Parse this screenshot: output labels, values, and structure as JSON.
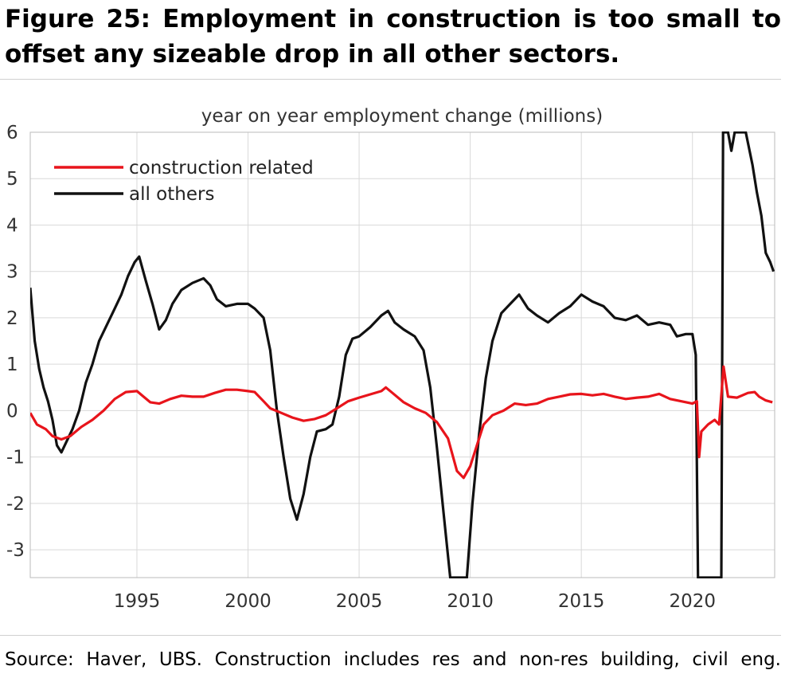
{
  "figure": {
    "title": "Figure 25: Employment in construction is too small to offset any sizeable drop in all other sectors.",
    "source": "Source: Haver, UBS. Construction includes res and non-res building, civil eng."
  },
  "chart_data": {
    "type": "line",
    "title": "year on year employment change (millions)",
    "xlabel": "",
    "ylabel": "",
    "xlim": [
      1990.2,
      2023.7
    ],
    "ylim": [
      -3.6,
      6
    ],
    "x_ticks": [
      1995,
      2000,
      2005,
      2010,
      2015,
      2020
    ],
    "y_ticks": [
      -3,
      -2,
      -1,
      0,
      1,
      2,
      3,
      4,
      5,
      6
    ],
    "y_tick_labels": [
      "-3",
      "-2",
      "-1",
      "0",
      "1",
      "2",
      "3",
      "4",
      "5",
      "6"
    ],
    "grid": true,
    "legend": "top-left",
    "series": [
      {
        "name": "construction related",
        "color": "#e8141b",
        "points": [
          [
            1990.2,
            -0.05
          ],
          [
            1990.5,
            -0.3
          ],
          [
            1990.9,
            -0.4
          ],
          [
            1991.2,
            -0.55
          ],
          [
            1991.6,
            -0.62
          ],
          [
            1992.0,
            -0.55
          ],
          [
            1992.5,
            -0.35
          ],
          [
            1993.0,
            -0.2
          ],
          [
            1993.5,
            0.0
          ],
          [
            1994.0,
            0.25
          ],
          [
            1994.5,
            0.4
          ],
          [
            1995.0,
            0.42
          ],
          [
            1995.3,
            0.3
          ],
          [
            1995.6,
            0.18
          ],
          [
            1996.0,
            0.15
          ],
          [
            1996.5,
            0.25
          ],
          [
            1997.0,
            0.32
          ],
          [
            1997.5,
            0.3
          ],
          [
            1998.0,
            0.3
          ],
          [
            1998.5,
            0.38
          ],
          [
            1999.0,
            0.45
          ],
          [
            1999.5,
            0.45
          ],
          [
            2000.0,
            0.42
          ],
          [
            2000.3,
            0.4
          ],
          [
            2000.7,
            0.2
          ],
          [
            2001.0,
            0.05
          ],
          [
            2001.5,
            -0.05
          ],
          [
            2002.0,
            -0.15
          ],
          [
            2002.5,
            -0.22
          ],
          [
            2003.0,
            -0.18
          ],
          [
            2003.5,
            -0.1
          ],
          [
            2004.0,
            0.05
          ],
          [
            2004.5,
            0.2
          ],
          [
            2005.0,
            0.28
          ],
          [
            2005.5,
            0.35
          ],
          [
            2006.0,
            0.42
          ],
          [
            2006.2,
            0.5
          ],
          [
            2006.5,
            0.38
          ],
          [
            2007.0,
            0.18
          ],
          [
            2007.5,
            0.05
          ],
          [
            2008.0,
            -0.05
          ],
          [
            2008.5,
            -0.25
          ],
          [
            2009.0,
            -0.6
          ],
          [
            2009.4,
            -1.3
          ],
          [
            2009.7,
            -1.45
          ],
          [
            2010.0,
            -1.2
          ],
          [
            2010.3,
            -0.75
          ],
          [
            2010.6,
            -0.3
          ],
          [
            2011.0,
            -0.1
          ],
          [
            2011.5,
            0.0
          ],
          [
            2012.0,
            0.15
          ],
          [
            2012.5,
            0.12
          ],
          [
            2013.0,
            0.15
          ],
          [
            2013.5,
            0.25
          ],
          [
            2014.0,
            0.3
          ],
          [
            2014.5,
            0.35
          ],
          [
            2015.0,
            0.36
          ],
          [
            2015.5,
            0.33
          ],
          [
            2016.0,
            0.36
          ],
          [
            2016.5,
            0.3
          ],
          [
            2017.0,
            0.25
          ],
          [
            2017.5,
            0.28
          ],
          [
            2018.0,
            0.3
          ],
          [
            2018.5,
            0.36
          ],
          [
            2019.0,
            0.25
          ],
          [
            2019.5,
            0.2
          ],
          [
            2020.0,
            0.15
          ],
          [
            2020.2,
            0.2
          ],
          [
            2020.3,
            -1.0
          ],
          [
            2020.4,
            -0.45
          ],
          [
            2020.7,
            -0.3
          ],
          [
            2021.0,
            -0.2
          ],
          [
            2021.2,
            -0.3
          ],
          [
            2021.4,
            0.95
          ],
          [
            2021.6,
            0.3
          ],
          [
            2022.0,
            0.28
          ],
          [
            2022.5,
            0.38
          ],
          [
            2022.8,
            0.4
          ],
          [
            2023.0,
            0.3
          ],
          [
            2023.3,
            0.22
          ],
          [
            2023.6,
            0.18
          ]
        ]
      },
      {
        "name": "all others",
        "color": "#111111",
        "points": [
          [
            1990.2,
            2.65
          ],
          [
            1990.4,
            1.5
          ],
          [
            1990.6,
            0.9
          ],
          [
            1990.8,
            0.5
          ],
          [
            1991.0,
            0.2
          ],
          [
            1991.2,
            -0.2
          ],
          [
            1991.4,
            -0.75
          ],
          [
            1991.6,
            -0.9
          ],
          [
            1991.8,
            -0.7
          ],
          [
            1992.1,
            -0.4
          ],
          [
            1992.4,
            0.0
          ],
          [
            1992.7,
            0.6
          ],
          [
            1993.0,
            1.0
          ],
          [
            1993.3,
            1.5
          ],
          [
            1993.6,
            1.8
          ],
          [
            1994.0,
            2.2
          ],
          [
            1994.3,
            2.5
          ],
          [
            1994.6,
            2.9
          ],
          [
            1994.9,
            3.2
          ],
          [
            1995.1,
            3.32
          ],
          [
            1995.4,
            2.8
          ],
          [
            1995.7,
            2.3
          ],
          [
            1996.0,
            1.75
          ],
          [
            1996.3,
            1.95
          ],
          [
            1996.6,
            2.3
          ],
          [
            1997.0,
            2.6
          ],
          [
            1997.5,
            2.75
          ],
          [
            1998.0,
            2.85
          ],
          [
            1998.3,
            2.7
          ],
          [
            1998.6,
            2.4
          ],
          [
            1999.0,
            2.25
          ],
          [
            1999.5,
            2.3
          ],
          [
            2000.0,
            2.3
          ],
          [
            2000.3,
            2.2
          ],
          [
            2000.7,
            2.0
          ],
          [
            2001.0,
            1.3
          ],
          [
            2001.3,
            0.0
          ],
          [
            2001.6,
            -1.0
          ],
          [
            2001.9,
            -1.9
          ],
          [
            2002.2,
            -2.35
          ],
          [
            2002.5,
            -1.8
          ],
          [
            2002.8,
            -1.0
          ],
          [
            2003.1,
            -0.45
          ],
          [
            2003.5,
            -0.4
          ],
          [
            2003.8,
            -0.3
          ],
          [
            2004.1,
            0.3
          ],
          [
            2004.4,
            1.2
          ],
          [
            2004.7,
            1.55
          ],
          [
            2005.0,
            1.6
          ],
          [
            2005.5,
            1.8
          ],
          [
            2006.0,
            2.05
          ],
          [
            2006.3,
            2.15
          ],
          [
            2006.6,
            1.9
          ],
          [
            2007.0,
            1.75
          ],
          [
            2007.5,
            1.6
          ],
          [
            2007.9,
            1.3
          ],
          [
            2008.2,
            0.5
          ],
          [
            2008.5,
            -0.8
          ],
          [
            2008.8,
            -2.2
          ],
          [
            2009.1,
            -3.6
          ],
          [
            2009.85,
            -3.6
          ],
          [
            2010.1,
            -2.0
          ],
          [
            2010.4,
            -0.5
          ],
          [
            2010.7,
            0.7
          ],
          [
            2011.0,
            1.5
          ],
          [
            2011.4,
            2.1
          ],
          [
            2011.8,
            2.3
          ],
          [
            2012.2,
            2.5
          ],
          [
            2012.6,
            2.2
          ],
          [
            2013.0,
            2.05
          ],
          [
            2013.5,
            1.9
          ],
          [
            2014.0,
            2.1
          ],
          [
            2014.5,
            2.25
          ],
          [
            2015.0,
            2.5
          ],
          [
            2015.5,
            2.35
          ],
          [
            2016.0,
            2.25
          ],
          [
            2016.5,
            2.0
          ],
          [
            2017.0,
            1.95
          ],
          [
            2017.5,
            2.05
          ],
          [
            2018.0,
            1.85
          ],
          [
            2018.5,
            1.9
          ],
          [
            2019.0,
            1.85
          ],
          [
            2019.3,
            1.6
          ],
          [
            2019.7,
            1.65
          ],
          [
            2020.0,
            1.65
          ],
          [
            2020.15,
            1.2
          ],
          [
            2020.25,
            -3.6
          ],
          [
            2021.3,
            -3.6
          ],
          [
            2021.38,
            6.0
          ],
          [
            2021.6,
            6.0
          ],
          [
            2021.75,
            5.6
          ],
          [
            2021.9,
            6.0
          ],
          [
            2022.4,
            6.0
          ],
          [
            2022.7,
            5.3
          ],
          [
            2022.9,
            4.7
          ],
          [
            2023.1,
            4.2
          ],
          [
            2023.3,
            3.4
          ],
          [
            2023.5,
            3.2
          ],
          [
            2023.65,
            3.0
          ]
        ]
      }
    ]
  }
}
